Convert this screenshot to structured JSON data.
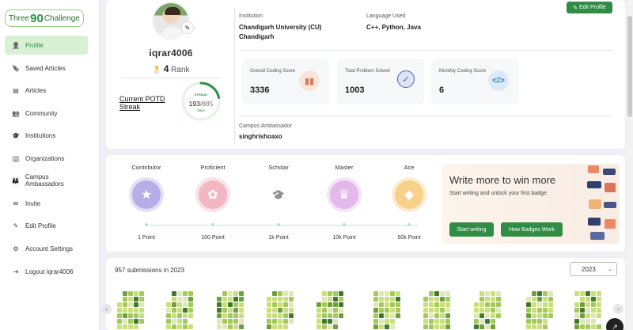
{
  "logo": {
    "pre": "Three",
    "big": "90",
    "post": "Challenge"
  },
  "sidebar": {
    "items": [
      {
        "label": "Profile",
        "icon": "person-icon",
        "active": true
      },
      {
        "label": "Saved Articles",
        "icon": "bookmark-icon"
      },
      {
        "label": "Articles",
        "icon": "document-icon"
      },
      {
        "label": "Community",
        "icon": "people-icon"
      },
      {
        "label": "Institutions",
        "icon": "graduation-cap-icon"
      },
      {
        "label": "Organizations",
        "icon": "building-icon"
      },
      {
        "label": "Campus Ambassadors",
        "icon": "group-icon"
      },
      {
        "label": "Invite",
        "icon": "mail-icon"
      },
      {
        "label": "Edit Profile",
        "icon": "pencil-icon"
      },
      {
        "label": "Account Settings",
        "icon": "gear-icon"
      },
      {
        "label": "Logout iqrar4006",
        "icon": "logout-icon"
      }
    ]
  },
  "profile": {
    "username": "iqrar4006",
    "rank_value": "4",
    "rank_label": "Rank",
    "potd_label": "Current POTD Streak",
    "streak_label": "STREAK",
    "streak_current": "193",
    "streak_total": "/885",
    "streak_days": "days",
    "streak_fraction": 0.218
  },
  "info": {
    "institution_label": "Institution",
    "institution_value": "Chandigarh University (CU) Chandigarh",
    "language_label": "Language Used",
    "language_value": "C++, Python, Java",
    "edit_label": "Edit Profile",
    "ambassador_label": "Campus Ambassador",
    "ambassador_value": "singhrishoaxo"
  },
  "stats": [
    {
      "label": "Overall Coding Score",
      "value": "3336",
      "icon": "bar-chart-icon",
      "color": "#f7e4da"
    },
    {
      "label": "Total Problem Solved",
      "value": "1003",
      "icon": "check-circle-icon",
      "color": "#dde5f5"
    },
    {
      "label": "Monthly Coding Score",
      "value": "6",
      "icon": "code-icon",
      "color": "#dde9f5"
    }
  ],
  "badges": [
    {
      "name": "Contributor",
      "points": "1 Point",
      "color": "#b7aee8",
      "icon": "star-icon"
    },
    {
      "name": "Proficient",
      "points": "100 Point",
      "color": "#f3b7c4",
      "icon": "ribbon-icon"
    },
    {
      "name": "Scholar",
      "points": "1k Point",
      "color": "#f4c896",
      "icon": "mortarboard-icon"
    },
    {
      "name": "Master",
      "points": "10k Point",
      "color": "#e3b8ea",
      "icon": "crown-icon"
    },
    {
      "name": "Ace",
      "points": "50k Point",
      "color": "#f7d18a",
      "icon": "diamond-icon"
    }
  ],
  "promo": {
    "title": "Write more to win more",
    "subtitle": "Start writing and unlock your first badge.",
    "start_label": "Start writing",
    "how_label": "How Badges Work"
  },
  "submissions": {
    "title": "957 submissions in 2023",
    "year": "2023"
  },
  "colors": {
    "accent": "#2f8d46"
  }
}
